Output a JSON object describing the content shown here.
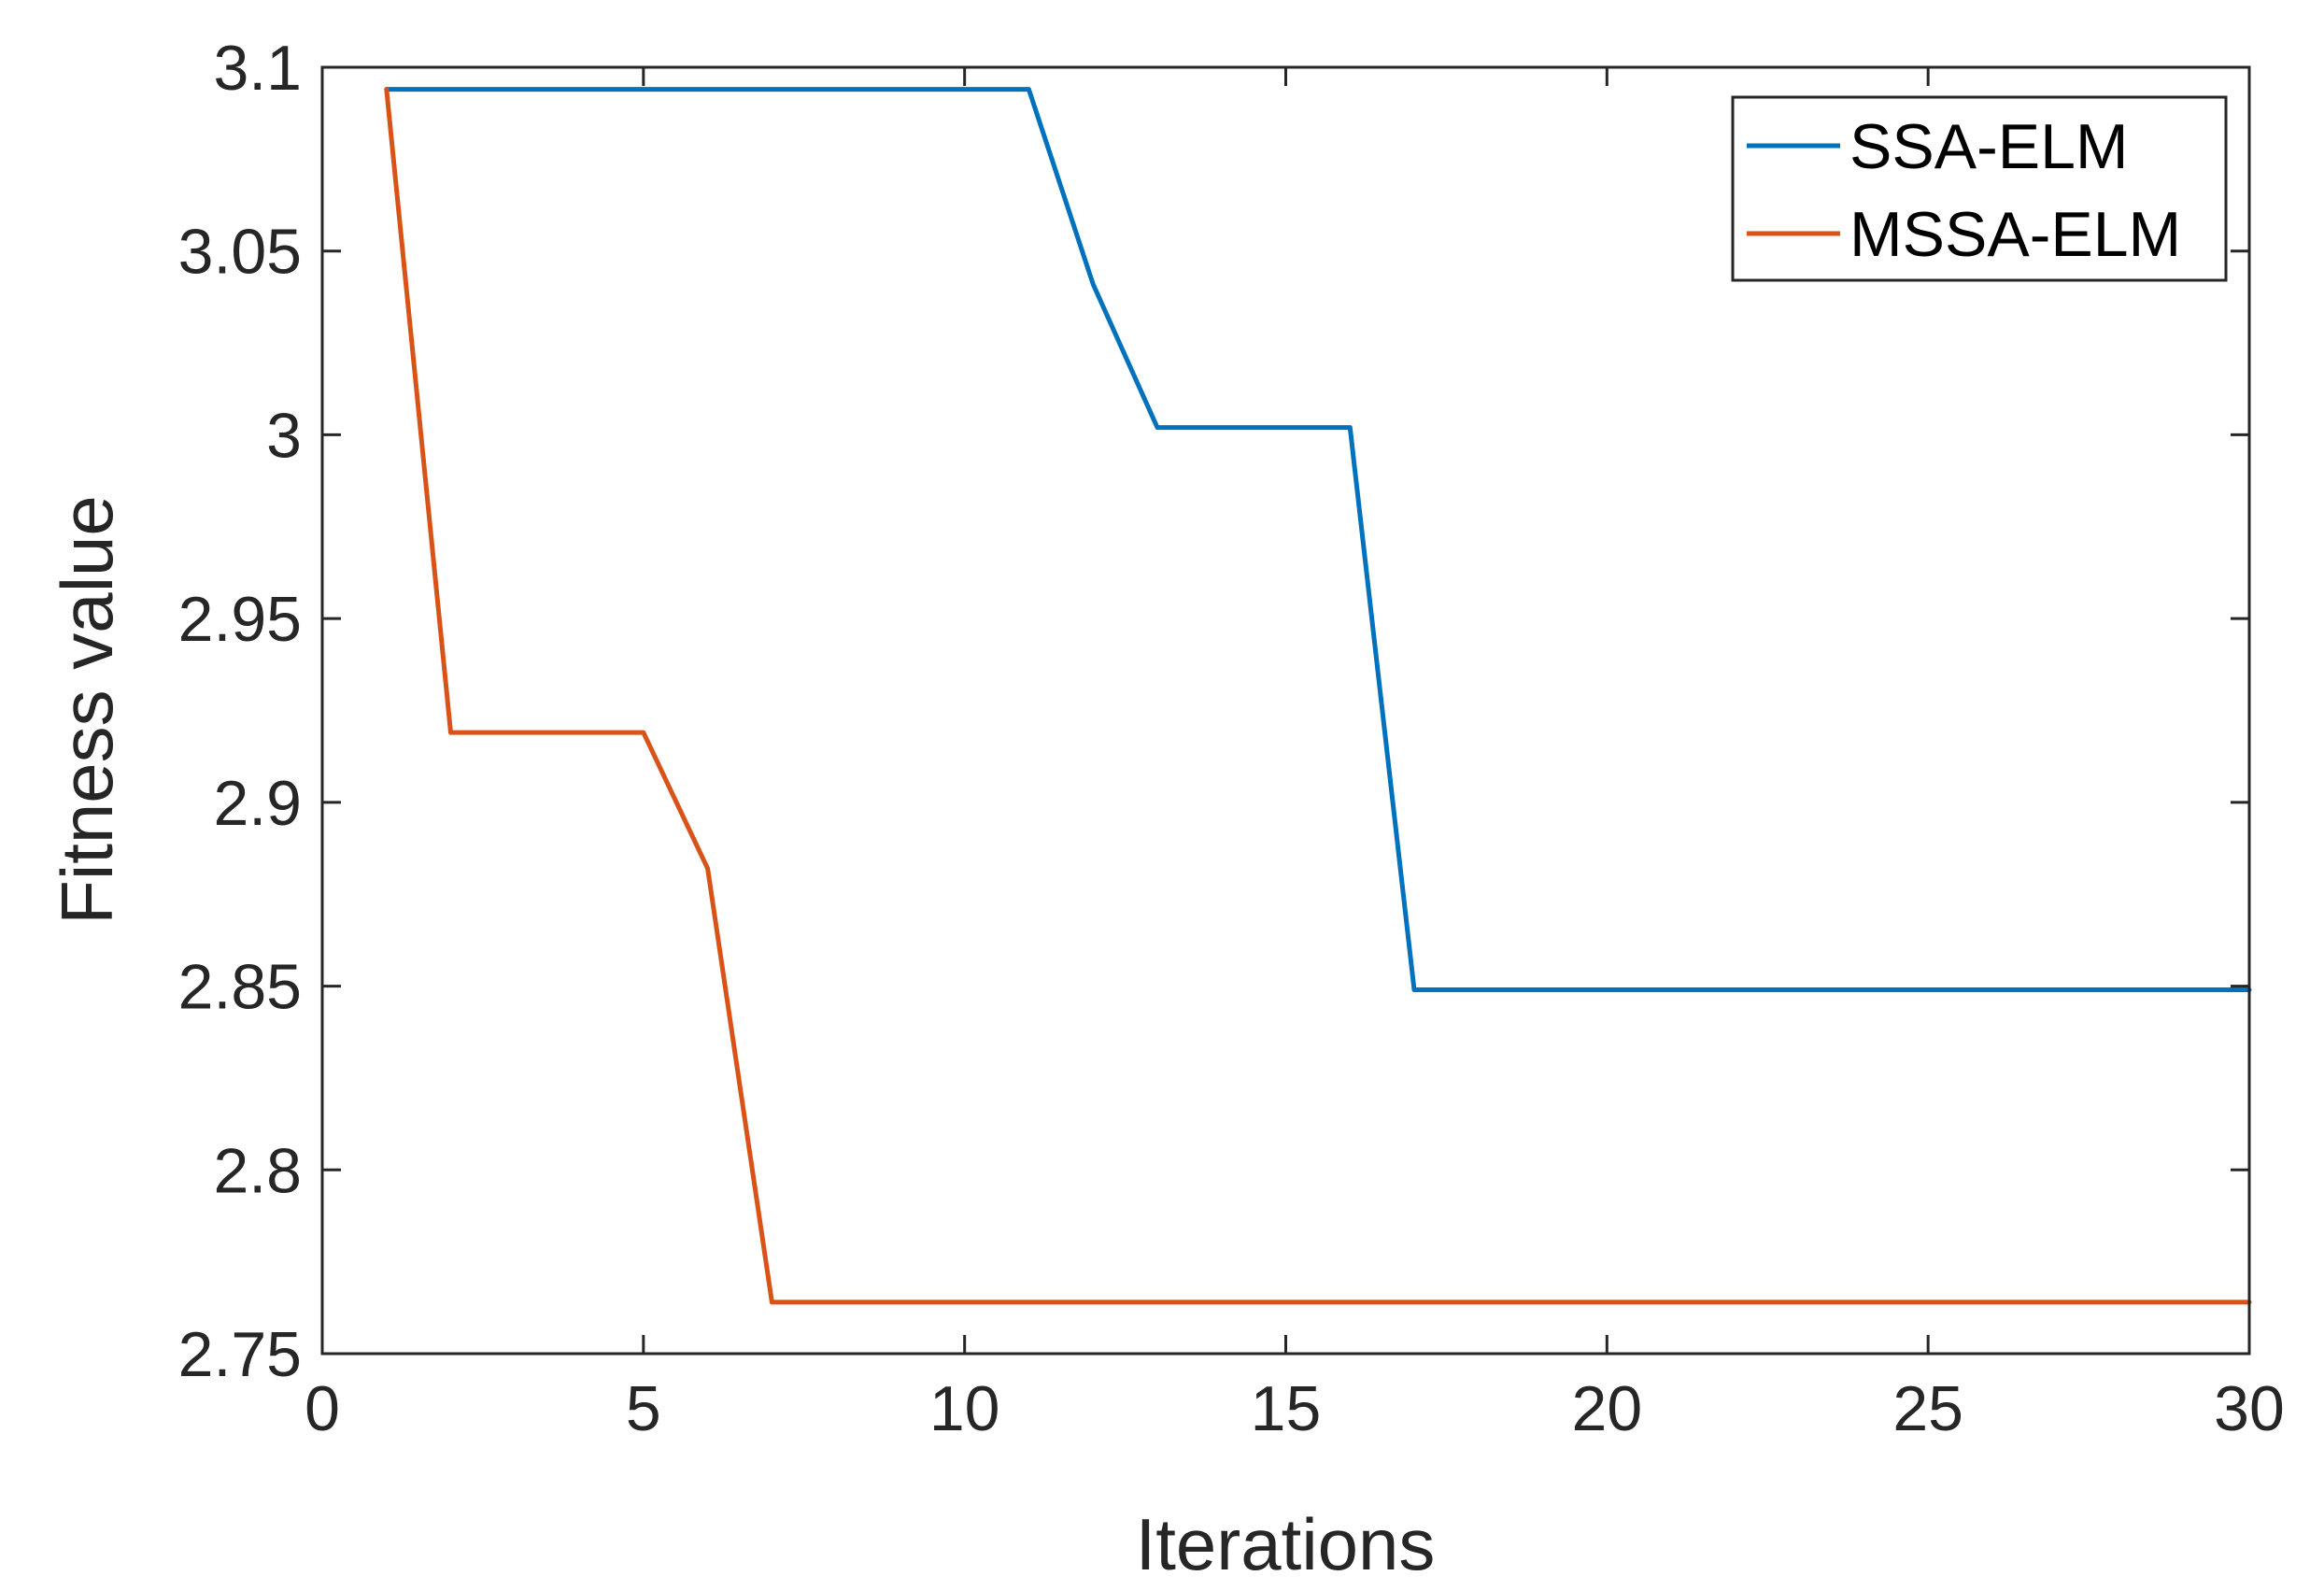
{
  "chart_data": {
    "type": "line",
    "xlabel": "Iterations",
    "ylabel": "Fitness value",
    "xlim": [
      0,
      30
    ],
    "ylim": [
      2.75,
      3.1
    ],
    "xticks": [
      0,
      5,
      10,
      15,
      20,
      25,
      30
    ],
    "xtick_labels": [
      "0",
      "5",
      "10",
      "15",
      "20",
      "25",
      "30"
    ],
    "yticks": [
      2.75,
      2.8,
      2.85,
      2.9,
      2.95,
      3.0,
      3.05,
      3.1
    ],
    "ytick_labels": [
      "2.75",
      "2.8",
      "2.85",
      "2.9",
      "2.95",
      "3",
      "3.05",
      "3.1"
    ],
    "grid": false,
    "legend_position": "top-right",
    "series": [
      {
        "name": "SSA-ELM",
        "color": "#0072BD",
        "x": [
          1,
          2,
          3,
          4,
          5,
          6,
          7,
          8,
          9,
          10,
          11,
          12,
          13,
          14,
          15,
          16,
          17,
          18,
          19,
          20,
          21,
          22,
          23,
          24,
          25,
          26,
          27,
          28,
          29,
          30
        ],
        "values": [
          3.094,
          3.094,
          3.094,
          3.094,
          3.094,
          3.094,
          3.094,
          3.094,
          3.094,
          3.094,
          3.094,
          3.041,
          3.002,
          3.002,
          3.002,
          3.002,
          2.849,
          2.849,
          2.849,
          2.849,
          2.849,
          2.849,
          2.849,
          2.849,
          2.849,
          2.849,
          2.849,
          2.849,
          2.849,
          2.849
        ]
      },
      {
        "name": "MSSA-ELM",
        "color": "#D95319",
        "x": [
          1,
          2,
          3,
          4,
          5,
          6,
          7,
          8,
          9,
          10,
          11,
          12,
          13,
          14,
          15,
          16,
          17,
          18,
          19,
          20,
          21,
          22,
          23,
          24,
          25,
          26,
          27,
          28,
          29,
          30
        ],
        "values": [
          3.094,
          2.919,
          2.919,
          2.919,
          2.919,
          2.882,
          2.764,
          2.764,
          2.764,
          2.764,
          2.764,
          2.764,
          2.764,
          2.764,
          2.764,
          2.764,
          2.764,
          2.764,
          2.764,
          2.764,
          2.764,
          2.764,
          2.764,
          2.764,
          2.764,
          2.764,
          2.764,
          2.764,
          2.764,
          2.764
        ]
      }
    ]
  }
}
